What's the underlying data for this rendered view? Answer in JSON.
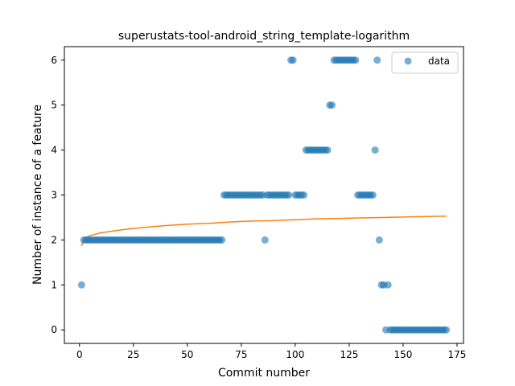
{
  "chart_data": {
    "type": "scatter",
    "title": "superustats-tool-android_string_template-logarithm",
    "xlabel": "Commit number",
    "ylabel": "Number of instance of a feature",
    "xlim": [
      -7,
      178
    ],
    "ylim": [
      -0.3,
      6.3
    ],
    "xticks": [
      0,
      25,
      50,
      75,
      100,
      125,
      150,
      175
    ],
    "yticks": [
      0,
      1,
      2,
      3,
      4,
      5,
      6
    ],
    "grid": false,
    "legend_position": "top-right",
    "colors": {
      "scatter": "#1f77b4",
      "fit": "#ff7f0e"
    },
    "series": [
      {
        "name": "data",
        "kind": "scatter",
        "points": [
          [
            1,
            1
          ],
          [
            2,
            2
          ],
          [
            3,
            2
          ],
          [
            4,
            2
          ],
          [
            5,
            2
          ],
          [
            6,
            2
          ],
          [
            7,
            2
          ],
          [
            8,
            2
          ],
          [
            9,
            2
          ],
          [
            10,
            2
          ],
          [
            11,
            2
          ],
          [
            12,
            2
          ],
          [
            13,
            2
          ],
          [
            14,
            2
          ],
          [
            15,
            2
          ],
          [
            16,
            2
          ],
          [
            17,
            2
          ],
          [
            18,
            2
          ],
          [
            19,
            2
          ],
          [
            20,
            2
          ],
          [
            21,
            2
          ],
          [
            22,
            2
          ],
          [
            23,
            2
          ],
          [
            24,
            2
          ],
          [
            25,
            2
          ],
          [
            26,
            2
          ],
          [
            27,
            2
          ],
          [
            28,
            2
          ],
          [
            29,
            2
          ],
          [
            30,
            2
          ],
          [
            31,
            2
          ],
          [
            32,
            2
          ],
          [
            33,
            2
          ],
          [
            34,
            2
          ],
          [
            35,
            2
          ],
          [
            36,
            2
          ],
          [
            37,
            2
          ],
          [
            38,
            2
          ],
          [
            39,
            2
          ],
          [
            40,
            2
          ],
          [
            41,
            2
          ],
          [
            42,
            2
          ],
          [
            43,
            2
          ],
          [
            44,
            2
          ],
          [
            45,
            2
          ],
          [
            46,
            2
          ],
          [
            47,
            2
          ],
          [
            48,
            2
          ],
          [
            49,
            2
          ],
          [
            50,
            2
          ],
          [
            51,
            2
          ],
          [
            52,
            2
          ],
          [
            53,
            2
          ],
          [
            54,
            2
          ],
          [
            55,
            2
          ],
          [
            56,
            2
          ],
          [
            57,
            2
          ],
          [
            58,
            2
          ],
          [
            59,
            2
          ],
          [
            60,
            2
          ],
          [
            61,
            2
          ],
          [
            62,
            2
          ],
          [
            63,
            2
          ],
          [
            64,
            2
          ],
          [
            65,
            2
          ],
          [
            66,
            2
          ],
          [
            67,
            3
          ],
          [
            68,
            3
          ],
          [
            69,
            3
          ],
          [
            70,
            3
          ],
          [
            71,
            3
          ],
          [
            72,
            3
          ],
          [
            73,
            3
          ],
          [
            74,
            3
          ],
          [
            75,
            3
          ],
          [
            76,
            3
          ],
          [
            77,
            3
          ],
          [
            78,
            3
          ],
          [
            79,
            3
          ],
          [
            80,
            3
          ],
          [
            81,
            3
          ],
          [
            82,
            3
          ],
          [
            83,
            3
          ],
          [
            84,
            3
          ],
          [
            85,
            3
          ],
          [
            86,
            2
          ],
          [
            87,
            3
          ],
          [
            88,
            3
          ],
          [
            89,
            3
          ],
          [
            90,
            3
          ],
          [
            91,
            3
          ],
          [
            92,
            3
          ],
          [
            93,
            3
          ],
          [
            94,
            3
          ],
          [
            95,
            3
          ],
          [
            96,
            3
          ],
          [
            97,
            3
          ],
          [
            98,
            6
          ],
          [
            99,
            6
          ],
          [
            100,
            3
          ],
          [
            101,
            3
          ],
          [
            102,
            3
          ],
          [
            103,
            3
          ],
          [
            104,
            3
          ],
          [
            105,
            4
          ],
          [
            106,
            4
          ],
          [
            107,
            4
          ],
          [
            108,
            4
          ],
          [
            109,
            4
          ],
          [
            110,
            4
          ],
          [
            111,
            4
          ],
          [
            112,
            4
          ],
          [
            113,
            4
          ],
          [
            114,
            4
          ],
          [
            115,
            4
          ],
          [
            116,
            5
          ],
          [
            117,
            5
          ],
          [
            118,
            6
          ],
          [
            119,
            6
          ],
          [
            120,
            6
          ],
          [
            121,
            6
          ],
          [
            122,
            6
          ],
          [
            123,
            6
          ],
          [
            124,
            6
          ],
          [
            125,
            6
          ],
          [
            126,
            6
          ],
          [
            127,
            6
          ],
          [
            128,
            6
          ],
          [
            129,
            3
          ],
          [
            130,
            3
          ],
          [
            131,
            3
          ],
          [
            132,
            3
          ],
          [
            133,
            3
          ],
          [
            134,
            3
          ],
          [
            135,
            3
          ],
          [
            136,
            3
          ],
          [
            137,
            4
          ],
          [
            138,
            6
          ],
          [
            139,
            2
          ],
          [
            140,
            1
          ],
          [
            141,
            1
          ],
          [
            143,
            1
          ],
          [
            142,
            0
          ],
          [
            144,
            0
          ],
          [
            145,
            0
          ],
          [
            146,
            0
          ],
          [
            147,
            0
          ],
          [
            148,
            0
          ],
          [
            149,
            0
          ],
          [
            150,
            0
          ],
          [
            151,
            0
          ],
          [
            152,
            0
          ],
          [
            153,
            0
          ],
          [
            154,
            0
          ],
          [
            155,
            0
          ],
          [
            156,
            0
          ],
          [
            157,
            0
          ],
          [
            158,
            0
          ],
          [
            159,
            0
          ],
          [
            160,
            0
          ],
          [
            161,
            0
          ],
          [
            162,
            0
          ],
          [
            163,
            0
          ],
          [
            164,
            0
          ],
          [
            165,
            0
          ],
          [
            166,
            0
          ],
          [
            167,
            0
          ],
          [
            168,
            0
          ],
          [
            169,
            0
          ],
          [
            170,
            0
          ]
        ]
      },
      {
        "kind": "line",
        "points": [
          [
            1,
            1.87
          ],
          [
            2,
            2.0
          ],
          [
            3,
            2.05
          ],
          [
            5,
            2.1
          ],
          [
            10,
            2.16
          ],
          [
            20,
            2.23
          ],
          [
            30,
            2.28
          ],
          [
            40,
            2.32
          ],
          [
            50,
            2.35
          ],
          [
            60,
            2.37
          ],
          [
            70,
            2.4
          ],
          [
            80,
            2.42
          ],
          [
            90,
            2.43
          ],
          [
            100,
            2.45
          ],
          [
            110,
            2.47
          ],
          [
            120,
            2.48
          ],
          [
            130,
            2.49
          ],
          [
            140,
            2.5
          ],
          [
            150,
            2.51
          ],
          [
            160,
            2.52
          ],
          [
            170,
            2.53
          ]
        ]
      }
    ]
  }
}
